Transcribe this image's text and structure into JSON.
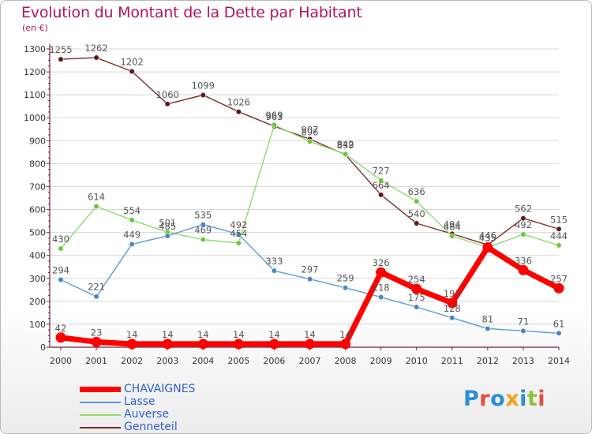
{
  "title": "Evolution du Montant de la Dette par Habitant",
  "unit": "(en €)",
  "logo": "Proxiti",
  "colors": {
    "title": "#b0155a",
    "axis": "#7a1f3e",
    "label": "#555555",
    "grid": "#d8d8d8",
    "legend_text": "#2e5fd1"
  },
  "chart_data": {
    "type": "line",
    "title": "Evolution du Montant de la Dette par Habitant",
    "ylabel": "(en €)",
    "xlabel": "",
    "x": [
      2000,
      2001,
      2002,
      2003,
      2004,
      2005,
      2006,
      2007,
      2008,
      2009,
      2010,
      2011,
      2012,
      2013,
      2014
    ],
    "ylim": [
      0,
      1300
    ],
    "yticks": [
      0,
      100,
      200,
      300,
      400,
      500,
      600,
      700,
      800,
      900,
      1000,
      1100,
      1200,
      1300
    ],
    "grid": true,
    "legend_position": "bottom-left",
    "series": [
      {
        "name": "CHAVAIGNES",
        "color": "#ff0000",
        "marker_color": "#ff0000",
        "values": [
          42,
          23,
          14,
          14,
          14,
          14,
          14,
          14,
          14,
          326,
          254,
          193,
          435,
          336,
          257
        ]
      },
      {
        "name": "Lasse",
        "color": "#5b9bd5",
        "marker_color": "#4a85c4",
        "values": [
          294,
          221,
          449,
          485,
          535,
          492,
          333,
          297,
          259,
          218,
          175,
          128,
          81,
          71,
          61
        ]
      },
      {
        "name": "Auverse",
        "color": "#8fdc6a",
        "marker_color": "#6ac93a",
        "values": [
          430,
          614,
          554,
          501,
          469,
          454,
          969,
          896,
          842,
          727,
          636,
          484,
          435,
          492,
          444
        ]
      },
      {
        "name": "Genneteil",
        "color": "#7a2a2a",
        "marker_color": "#5e1818",
        "values": [
          1255,
          1262,
          1202,
          1060,
          1099,
          1026,
          963,
          907,
          839,
          664,
          540,
          494,
          446,
          562,
          515
        ]
      }
    ]
  }
}
